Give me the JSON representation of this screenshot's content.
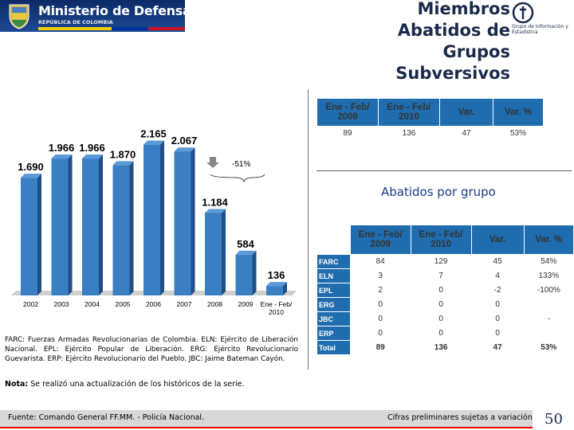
{
  "header": {
    "org_name": "Ministerio de Defensa Nacional",
    "org_subtitle": "REPÚBLICA DE COLOMBIA",
    "title": "Miembros Abatidos de Grupos Subversivos",
    "logo_caption": "Grupo de Información y Estadística",
    "flag_colors": [
      "#f5d000",
      "#0033a0",
      "#ce1126"
    ]
  },
  "summary_table": {
    "headers": [
      "Ene - Feb/ 2009",
      "Ene - Feb/ 2010",
      "Var.",
      "Var. %"
    ],
    "row": [
      "89",
      "136",
      "47",
      "53%"
    ]
  },
  "subtitle": "Abatidos por grupo",
  "group_table": {
    "headers": [
      "",
      "Ene - Feb/ 2009",
      "Ene - Feb/ 2010",
      "Var.",
      "Var. %"
    ],
    "rows": [
      [
        "FARC",
        "84",
        "129",
        "45",
        "54%"
      ],
      [
        "ELN",
        "3",
        "7",
        "4",
        "133%"
      ],
      [
        "EPL",
        "2",
        "0",
        "-2",
        "-100%"
      ],
      [
        "ERG",
        "0",
        "0",
        "0",
        ""
      ],
      [
        "JBC",
        "0",
        "0",
        "0",
        "-"
      ],
      [
        "ERP",
        "0",
        "0",
        "0",
        ""
      ],
      [
        "Total",
        "89",
        "136",
        "47",
        "53%"
      ]
    ]
  },
  "chart_data": {
    "type": "bar",
    "categories": [
      "2002",
      "2003",
      "2004",
      "2005",
      "2006",
      "2007",
      "2008",
      "2009",
      "Ene - Feb/2010"
    ],
    "values": [
      1690,
      1966,
      1966,
      1870,
      2165,
      2067,
      1184,
      584,
      136
    ],
    "value_labels": [
      "1.690",
      "1.966",
      "1.966",
      "1.870",
      "2.165",
      "2.067",
      "1.184",
      "584",
      "136"
    ],
    "annotation": "-51%",
    "ylim": [
      0,
      2400
    ],
    "bar_color": "#3a7fc4",
    "grid": false
  },
  "footnote": {
    "text": "FARC: Fuerzas Armadas Revolucionarias de Colombia. ELN: Ejército de Liberación Nacional. EPL: Ejército Popular de Liberación. ERG: Ejército Revolucionario Guevarista. ERP: Ejército Revolucionario del Pueblo. JBC: Jaime Bateman Cayón."
  },
  "nota": {
    "label": "Nota:",
    "text": " Se realizó una actualización de los históricos de la serie."
  },
  "footer": {
    "source": "Fuente:  Comando General FF.MM. - Policía Nacional.",
    "preliminary": "Cifras preliminares sujetas a variación",
    "page_number": "50"
  }
}
